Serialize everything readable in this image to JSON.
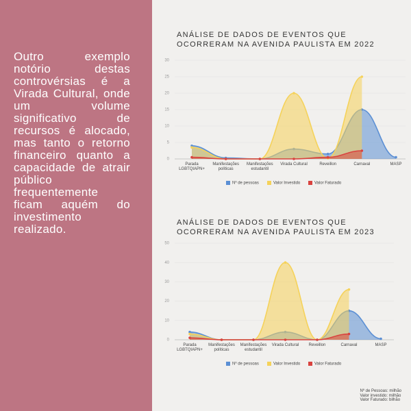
{
  "body_text": "Outro exemplo notório destas controvérsias é a Virada Cultural, onde um volume significativo de recursos é alocado, mas tanto o retorno financeiro quanto a capacidade de atrair público frequentemente ficam aquém do investimento realizado.",
  "notes": [
    "Nº de Pessoas: milhão",
    "Valor investido: milhão",
    "Valor Faturado: bilhão"
  ],
  "chart_data": [
    {
      "type": "area",
      "title": "ANÁLISE DE DADOS DE EVENTOS QUE OCORRERAM NA AVENIDA PAULISTA EM 2022",
      "categories": [
        "Parada LGBTQIAPN+",
        "Manifestações políticas",
        "Manifestações estudantil",
        "Virada Cultural",
        "Reveillon",
        "Carnaval",
        "MASP"
      ],
      "series": [
        {
          "name": "Nº de pessoas",
          "color": "#5b8fd4",
          "values": [
            4,
            0.3,
            0,
            3,
            1.5,
            15,
            0.5
          ]
        },
        {
          "name": "Valor Investido",
          "color": "#f5d25a",
          "values": [
            3.5,
            0,
            0,
            20,
            0.2,
            25,
            null
          ]
        },
        {
          "name": "Valor Faturado",
          "color": "#d9433f",
          "values": [
            0.5,
            0,
            0,
            0,
            0.5,
            2.5,
            null
          ]
        }
      ],
      "ylim": [
        0,
        30
      ],
      "yticks": [
        0,
        5,
        10,
        15,
        20,
        25,
        30
      ],
      "grid": true
    },
    {
      "type": "area",
      "title": "ANÁLISE DE DADOS DE EVENTOS QUE OCORRERAM NA AVENIDA PAULISTA EM 2023",
      "categories": [
        "Parada LGBTQIAPN+",
        "Manifestações políticas",
        "Manifestações estudantil",
        "Virada Cultural",
        "Reveillon",
        "Carnaval",
        "MASP"
      ],
      "series": [
        {
          "name": "Nº de pessoas",
          "color": "#5b8fd4",
          "values": [
            4,
            0,
            0,
            4,
            0,
            15,
            0.5
          ]
        },
        {
          "name": "Valor Investido",
          "color": "#f5d25a",
          "values": [
            3,
            0,
            0,
            40,
            0,
            26,
            null
          ]
        },
        {
          "name": "Valor Faturado",
          "color": "#d9433f",
          "values": [
            1,
            0,
            0,
            0,
            0,
            3,
            null
          ]
        }
      ],
      "ylim": [
        0,
        50
      ],
      "yticks": [
        0,
        10,
        20,
        30,
        40,
        50
      ],
      "grid": true
    }
  ]
}
